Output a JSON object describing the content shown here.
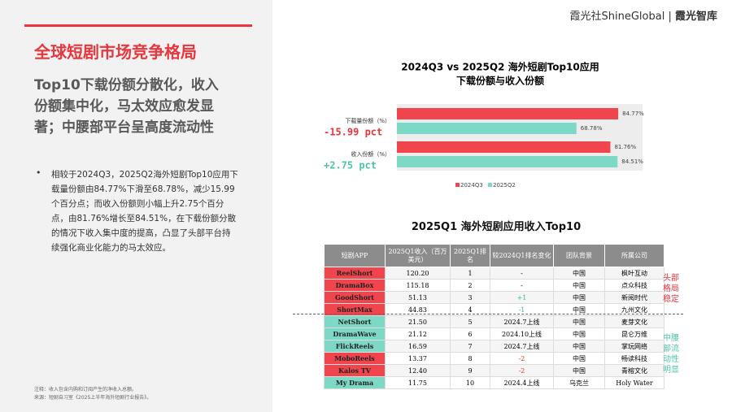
{
  "header": {
    "brand": "霞光社ShineGlobal",
    "divider": "|",
    "brand2": "霞光智库"
  },
  "title": "全球短剧市场竞争格局",
  "subtitle": [
    "Top10下载份额分散化，收入",
    "份额集中化，马太效应愈发显",
    "著；中腰部平台呈高度流动性"
  ],
  "bullet": "相较于2024Q3，2025Q2海外短剧Top10应用下载量份额由84.77%下滑至68.78%，减少15.99个百分点；而收入份额则小幅上升2.75个百分点，由81.76%增长至84.51%，在下载份额分散的情况下收入集中度的提高，凸显了头部平台持续强化商业化能力的马太效应。",
  "notes": [
    "注释：收入包含内购和订阅产生的净收入总额。",
    "来源：短剧自习室《2025上半年海外短剧行业报告》。"
  ],
  "chart_data": {
    "type": "bar",
    "orientation": "horizontal",
    "title": [
      "2024Q3 vs 2025Q2 海外短剧Top10应用",
      "下载份额与收入份额"
    ],
    "categories": [
      "下载量份额（%）",
      "收入份额（%）"
    ],
    "series": [
      {
        "name": "2024Q3",
        "color": "#f0454d",
        "values": [
          84.77,
          81.76
        ],
        "value_labels": [
          "84.77%",
          "81.76%"
        ]
      },
      {
        "name": "2025Q2",
        "color": "#7dd9c5",
        "values": [
          68.78,
          84.51
        ],
        "value_labels": [
          "68.78%",
          "84.51%"
        ]
      }
    ],
    "annotations": [
      {
        "text": "-15.99 pct",
        "color": "#e8363c"
      },
      {
        "text": "+2.75 pct",
        "color": "#4fc3a9"
      }
    ],
    "legend": "bottom"
  },
  "table": {
    "title": "2025Q1 海外短剧应用收入Top10",
    "columns": [
      "短剧APP",
      "2025Q1收入（百万美元）",
      "2025Q1排名",
      "较2024Q1排名变化",
      "团队背景",
      "所属公司"
    ],
    "rows": [
      [
        "ReelShort",
        "120.20",
        "1",
        "-",
        "中国",
        "枫叶互动"
      ],
      [
        "DramaBox",
        "115.18",
        "2",
        "-",
        "中国",
        "点众科技"
      ],
      [
        "GoodShort",
        "51.13",
        "3",
        "+1",
        "中国",
        "新阅时代"
      ],
      [
        "ShortMax",
        "44.83",
        "4",
        "-1",
        "中国",
        "九州文化"
      ],
      [
        "NetShort",
        "21.50",
        "5",
        "2024.7上线",
        "中国",
        "麦芽文化"
      ],
      [
        "DramaWave",
        "21.12",
        "6",
        "2024.10上线",
        "中国",
        "昆仑万维"
      ],
      [
        "FlickReels",
        "16.59",
        "7",
        "2024.7上线",
        "中国",
        "掌玩网络"
      ],
      [
        "MoboReels",
        "13.37",
        "8",
        "-2",
        "中国",
        "畅读科技"
      ],
      [
        "Kalos TV",
        "12.40",
        "9",
        "-2",
        "中国",
        "青榕文化"
      ],
      [
        "My Drama",
        "11.75",
        "10",
        "2024.4上线",
        "乌克兰",
        "Holy Water"
      ]
    ],
    "app_colors": [
      "#f0454d",
      "#f0454d",
      "#f0454d",
      "#f0454d",
      "#7dd9c5",
      "#7dd9c5",
      "#7dd9c5",
      "#f0454d",
      "#f0454d",
      "#7dd9c5"
    ],
    "change_colors": [
      null,
      null,
      "#2bb596",
      "#2bb596",
      null,
      null,
      null,
      "#e8363c",
      "#e8363c",
      null
    ],
    "groups": [
      {
        "text": "头部格局稳定",
        "color": "#e8363c"
      },
      {
        "text": "中腰部流动性明显",
        "color": "#4fc3a9"
      }
    ]
  }
}
